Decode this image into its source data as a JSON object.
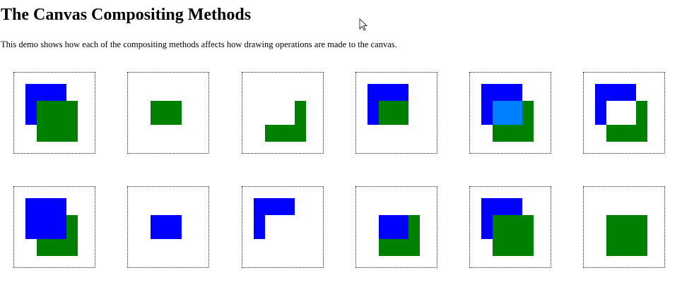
{
  "page": {
    "title": "The Canvas Compositing Methods",
    "description": "This demo shows how each of the compositing methods affects how drawing operations are made to the canvas."
  },
  "colors": {
    "destination": "#0000ff",
    "source": "#008000",
    "blended": "#0080ff",
    "border": "#222222",
    "background": "#ffffff"
  },
  "demos": [
    {
      "shapes": [
        [
          "blue",
          16,
          16,
          58,
          58
        ],
        [
          "green",
          32,
          40,
          58,
          58
        ]
      ]
    },
    {
      "shapes": [
        [
          "green",
          32,
          40,
          44,
          34
        ]
      ]
    },
    {
      "shapes": [
        [
          "green",
          32,
          74,
          58,
          24
        ],
        [
          "green",
          74,
          40,
          16,
          34
        ]
      ]
    },
    {
      "shapes": [
        [
          "blue",
          16,
          16,
          58,
          58
        ],
        [
          "green",
          32,
          40,
          42,
          34
        ]
      ]
    },
    {
      "shapes": [
        [
          "blue",
          16,
          16,
          58,
          58
        ],
        [
          "green",
          32,
          40,
          58,
          58
        ],
        [
          "cyan",
          32,
          40,
          42,
          34
        ]
      ]
    },
    {
      "shapes": [
        [
          "blue",
          16,
          16,
          58,
          58
        ],
        [
          "green",
          32,
          40,
          58,
          58
        ],
        [
          "white",
          32,
          40,
          42,
          34
        ]
      ]
    },
    {
      "shapes": [
        [
          "green",
          32,
          40,
          58,
          58
        ],
        [
          "blue",
          16,
          16,
          58,
          58
        ]
      ]
    },
    {
      "shapes": [
        [
          "blue",
          32,
          40,
          44,
          34
        ]
      ]
    },
    {
      "shapes": [
        [
          "blue",
          16,
          16,
          58,
          24
        ],
        [
          "blue",
          16,
          40,
          16,
          34
        ]
      ]
    },
    {
      "shapes": [
        [
          "green",
          32,
          40,
          58,
          58
        ],
        [
          "blue",
          32,
          40,
          42,
          34
        ]
      ]
    },
    {
      "shapes": [
        [
          "blue",
          16,
          16,
          58,
          58
        ],
        [
          "green",
          32,
          40,
          58,
          58
        ]
      ]
    },
    {
      "shapes": [
        [
          "green",
          32,
          40,
          58,
          58
        ]
      ]
    }
  ]
}
